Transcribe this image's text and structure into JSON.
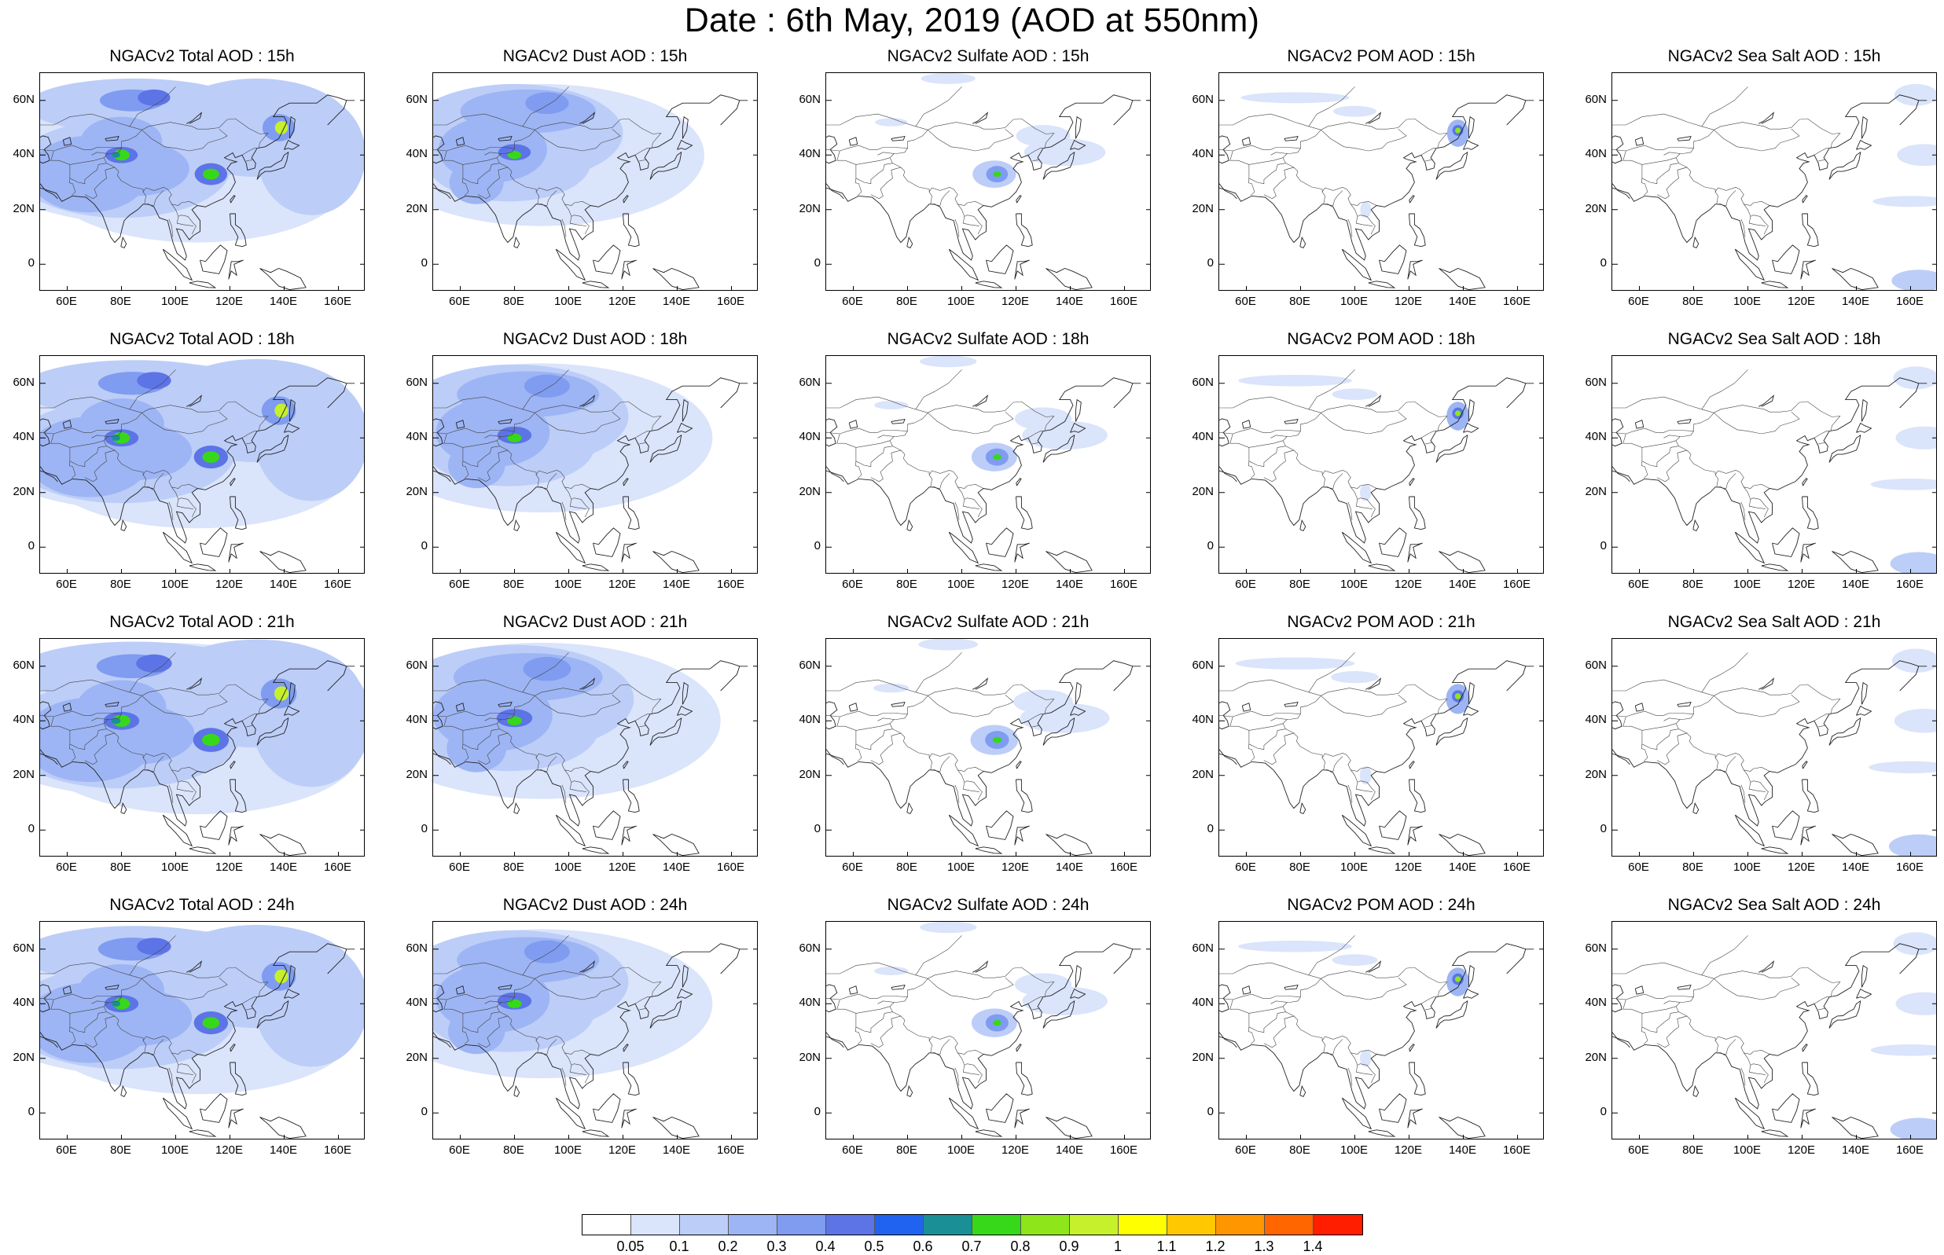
{
  "title": "Date : 6th May, 2019 (AOD at 550nm)",
  "map_axes": {
    "lat_labels": [
      "60N",
      "40N",
      "20N",
      "0"
    ],
    "lon_labels": [
      "60E",
      "80E",
      "100E",
      "120E",
      "140E",
      "160E"
    ]
  },
  "panels": [
    {
      "title": "NGACv2 Total AOD : 15h",
      "species": "total",
      "hour": "15h"
    },
    {
      "title": "NGACv2 Dust AOD : 15h",
      "species": "dust",
      "hour": "15h"
    },
    {
      "title": "NGACv2 Sulfate AOD : 15h",
      "species": "sulfate",
      "hour": "15h"
    },
    {
      "title": "NGACv2 POM AOD : 15h",
      "species": "pom",
      "hour": "15h"
    },
    {
      "title": "NGACv2 Sea Salt AOD : 15h",
      "species": "seasalt",
      "hour": "15h"
    },
    {
      "title": "NGACv2 Total AOD : 18h",
      "species": "total",
      "hour": "18h"
    },
    {
      "title": "NGACv2 Dust AOD : 18h",
      "species": "dust",
      "hour": "18h"
    },
    {
      "title": "NGACv2 Sulfate AOD : 18h",
      "species": "sulfate",
      "hour": "18h"
    },
    {
      "title": "NGACv2 POM AOD : 18h",
      "species": "pom",
      "hour": "18h"
    },
    {
      "title": "NGACv2 Sea Salt AOD : 18h",
      "species": "seasalt",
      "hour": "18h"
    },
    {
      "title": "NGACv2 Total AOD : 21h",
      "species": "total",
      "hour": "21h"
    },
    {
      "title": "NGACv2 Dust AOD : 21h",
      "species": "dust",
      "hour": "21h"
    },
    {
      "title": "NGACv2 Sulfate AOD : 21h",
      "species": "sulfate",
      "hour": "21h"
    },
    {
      "title": "NGACv2 POM AOD : 21h",
      "species": "pom",
      "hour": "21h"
    },
    {
      "title": "NGACv2 Sea Salt AOD : 21h",
      "species": "seasalt",
      "hour": "21h"
    },
    {
      "title": "NGACv2 Total AOD : 24h",
      "species": "total",
      "hour": "24h"
    },
    {
      "title": "NGACv2 Dust AOD : 24h",
      "species": "dust",
      "hour": "24h"
    },
    {
      "title": "NGACv2 Sulfate AOD : 24h",
      "species": "sulfate",
      "hour": "24h"
    },
    {
      "title": "NGACv2 POM AOD : 24h",
      "species": "pom",
      "hour": "24h"
    },
    {
      "title": "NGACv2 Sea Salt  AOD : 24h",
      "species": "seasalt",
      "hour": "24h"
    }
  ],
  "colorbar": {
    "labels": [
      "0.05",
      "0.1",
      "0.2",
      "0.3",
      "0.4",
      "0.5",
      "0.6",
      "0.7",
      "0.8",
      "0.9",
      "1",
      "1.1",
      "1.2",
      "1.3",
      "1.4"
    ],
    "colors": [
      "#ffffff",
      "#dae4fb",
      "#bccdf8",
      "#9db5f4",
      "#7f9cf0",
      "#5d74e6",
      "#1f63f0",
      "#1a8f96",
      "#37d81a",
      "#8ee61a",
      "#c6f02c",
      "#ffff00",
      "#ffc800",
      "#ff9600",
      "#ff6600",
      "#ff1e00"
    ]
  }
}
